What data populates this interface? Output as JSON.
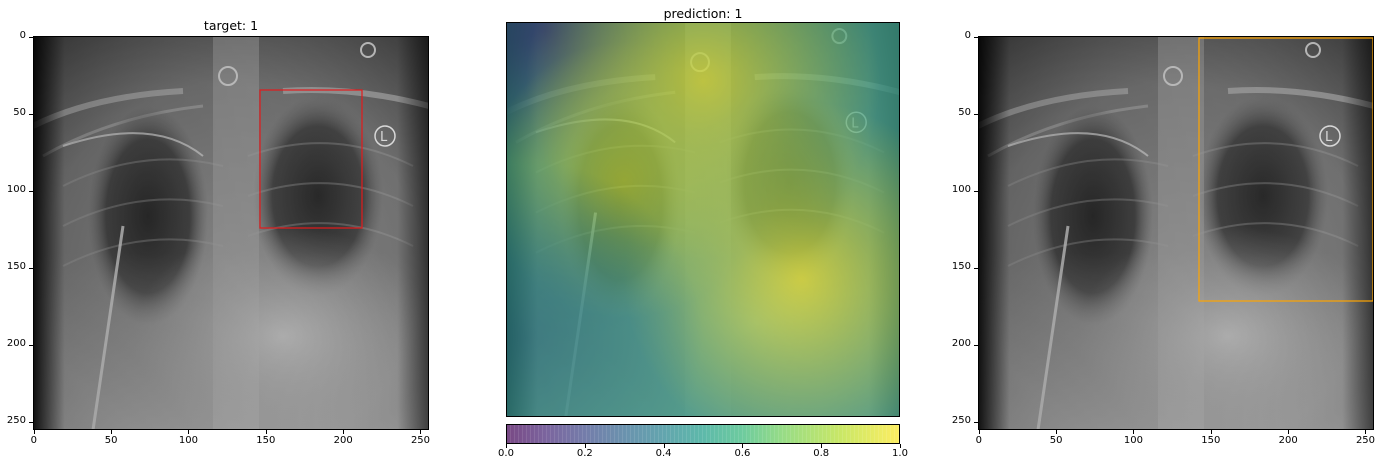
{
  "panels": [
    {
      "title": "target: 1",
      "x_ticks": [
        "0",
        "50",
        "100",
        "150",
        "200",
        "250"
      ],
      "y_ticks": [
        "0",
        "50",
        "100",
        "150",
        "200",
        "250"
      ],
      "box": {
        "x0": 148,
        "y0": 35,
        "x1": 214,
        "y1": 124,
        "color": "#e31a1c"
      }
    },
    {
      "title": "prediction: 1",
      "colorbar": {
        "ticks": [
          "0.0",
          "0.2",
          "0.4",
          "0.6",
          "0.8",
          "1.0"
        ],
        "colormap": "viridis",
        "alpha": 0.7
      }
    },
    {
      "title": "",
      "x_ticks": [
        "0",
        "50",
        "100",
        "150",
        "200",
        "250"
      ],
      "y_ticks": [
        "0",
        "50",
        "100",
        "150",
        "200",
        "250"
      ],
      "box": {
        "x0": 143,
        "y0": 0,
        "x1": 256,
        "y1": 171,
        "color": "#ffa500"
      }
    }
  ],
  "image_extent": [
    0,
    256
  ],
  "marker_letter": "L"
}
